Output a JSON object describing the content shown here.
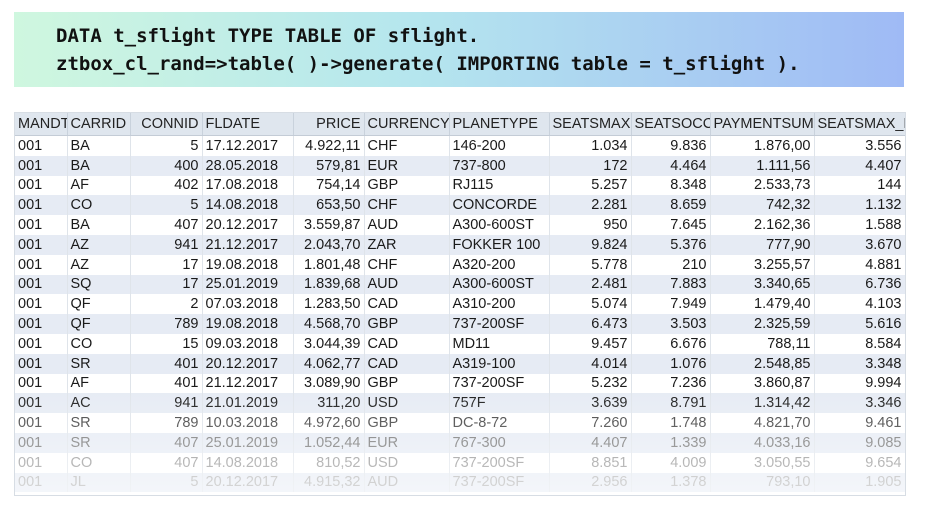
{
  "code": {
    "line1": "DATA t_sflight TYPE TABLE OF sflight.",
    "line2": "ztbox_cl_rand=>table( )->generate( IMPORTING table = t_sflight )."
  },
  "table": {
    "headers": [
      "MANDT",
      "CARRID",
      "CONNID",
      "FLDATE",
      "PRICE",
      "CURRENCY",
      "PLANETYPE",
      "SEATSMAX",
      "SEATSOCC",
      "PAYMENTSUM",
      "SEATSMAX_B"
    ],
    "rows": [
      [
        "001",
        "BA",
        "5",
        "17.12.2017",
        "4.922,11",
        "CHF",
        "146-200",
        "1.034",
        "9.836",
        "1.876,00",
        "3.556"
      ],
      [
        "001",
        "BA",
        "400",
        "28.05.2018",
        "579,81",
        "EUR",
        "737-800",
        "172",
        "4.464",
        "1.111,56",
        "4.407"
      ],
      [
        "001",
        "AF",
        "402",
        "17.08.2018",
        "754,14",
        "GBP",
        "RJ115",
        "5.257",
        "8.348",
        "2.533,73",
        "144"
      ],
      [
        "001",
        "CO",
        "5",
        "14.08.2018",
        "653,50",
        "CHF",
        "CONCORDE",
        "2.281",
        "8.659",
        "742,32",
        "1.132"
      ],
      [
        "001",
        "BA",
        "407",
        "20.12.2017",
        "3.559,87",
        "AUD",
        "A300-600ST",
        "950",
        "7.645",
        "2.162,36",
        "1.588"
      ],
      [
        "001",
        "AZ",
        "941",
        "21.12.2017",
        "2.043,70",
        "ZAR",
        "FOKKER 100",
        "9.824",
        "5.376",
        "777,90",
        "3.670"
      ],
      [
        "001",
        "AZ",
        "17",
        "19.08.2018",
        "1.801,48",
        "CHF",
        "A320-200",
        "5.778",
        "210",
        "3.255,57",
        "4.881"
      ],
      [
        "001",
        "SQ",
        "17",
        "25.01.2019",
        "1.839,68",
        "AUD",
        "A300-600ST",
        "2.481",
        "7.883",
        "3.340,65",
        "6.736"
      ],
      [
        "001",
        "QF",
        "2",
        "07.03.2018",
        "1.283,50",
        "CAD",
        "A310-200",
        "5.074",
        "7.949",
        "1.479,40",
        "4.103"
      ],
      [
        "001",
        "QF",
        "789",
        "19.08.2018",
        "4.568,70",
        "GBP",
        "737-200SF",
        "6.473",
        "3.503",
        "2.325,59",
        "5.616"
      ],
      [
        "001",
        "CO",
        "15",
        "09.03.2018",
        "3.044,39",
        "CAD",
        "MD11",
        "9.457",
        "6.676",
        "788,11",
        "8.584"
      ],
      [
        "001",
        "SR",
        "401",
        "20.12.2017",
        "4.062,77",
        "CAD",
        "A319-100",
        "4.014",
        "1.076",
        "2.548,85",
        "3.348"
      ],
      [
        "001",
        "AF",
        "401",
        "21.12.2017",
        "3.089,90",
        "GBP",
        "737-200SF",
        "5.232",
        "7.236",
        "3.860,87",
        "9.994"
      ],
      [
        "001",
        "AC",
        "941",
        "21.01.2019",
        "311,20",
        "USD",
        "757F",
        "3.639",
        "8.791",
        "1.314,42",
        "3.346"
      ],
      [
        "001",
        "SR",
        "789",
        "10.03.2018",
        "4.972,60",
        "GBP",
        "DC-8-72",
        "7.260",
        "1.748",
        "4.821,70",
        "9.461"
      ],
      [
        "001",
        "SR",
        "407",
        "25.01.2019",
        "1.052,44",
        "EUR",
        "767-300",
        "4.407",
        "1.339",
        "4.033,16",
        "9.085"
      ],
      [
        "001",
        "CO",
        "407",
        "14.08.2018",
        "810,52",
        "USD",
        "737-200SF",
        "8.851",
        "4.009",
        "3.050,55",
        "9.654"
      ],
      [
        "001",
        "JL",
        "5",
        "20.12.2017",
        "4.915,32",
        "AUD",
        "737-200SF",
        "2.956",
        "1.378",
        "793,10",
        "1.905"
      ]
    ]
  }
}
